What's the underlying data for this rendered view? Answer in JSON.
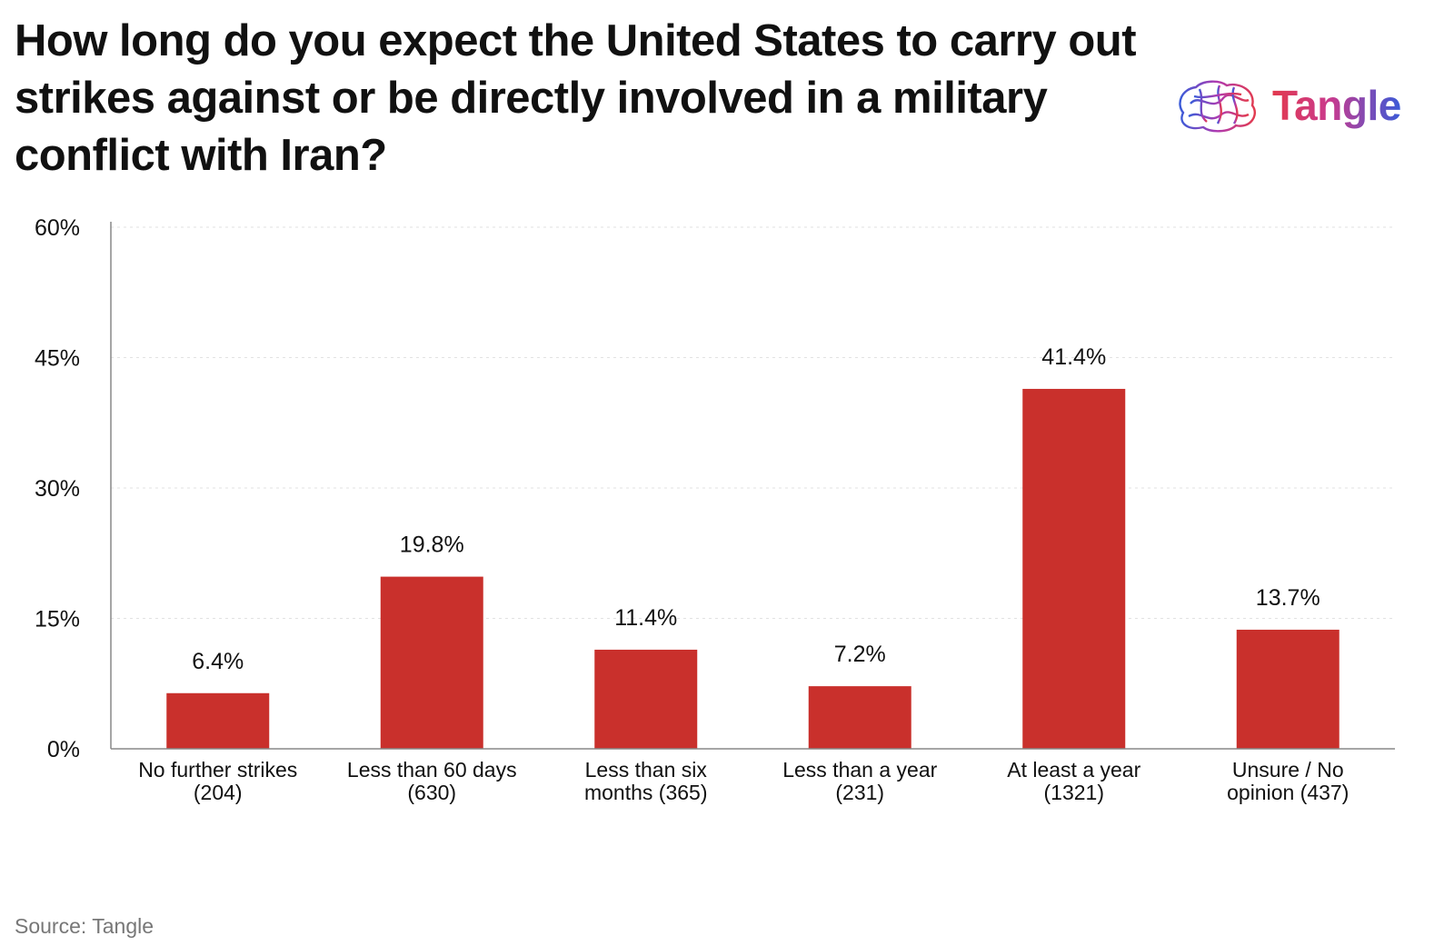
{
  "title": "How long do you expect the United States to carry out strikes against or be directly involved in a military conflict with Iran?",
  "logo": {
    "text": "Tangle",
    "icon": "tangle-brain-icon"
  },
  "source": "Source: Tangle",
  "colors": {
    "bar": "#c9302c",
    "axis": "#888888",
    "grid": "#e2e2e2",
    "text": "#111111"
  },
  "chart_data": {
    "type": "bar",
    "title": "How long do you expect the United States to carry out strikes against or be directly involved in a military conflict with Iran?",
    "categories": [
      [
        "No further strikes",
        "(204)"
      ],
      [
        "Less than 60 days",
        "(630)"
      ],
      [
        "Less than six",
        "months (365)"
      ],
      [
        "Less than a year",
        "(231)"
      ],
      [
        "At least a year",
        "(1321)"
      ],
      [
        "Unsure / No",
        "opinion (437)"
      ]
    ],
    "values": [
      6.4,
      19.8,
      11.4,
      7.2,
      41.4,
      13.7
    ],
    "value_labels": [
      "6.4%",
      "19.8%",
      "11.4%",
      "7.2%",
      "41.4%",
      "13.7%"
    ],
    "ylim": [
      0,
      60
    ],
    "yticks": [
      0,
      15,
      30,
      45,
      60
    ],
    "ytick_labels": [
      "0%",
      "15%",
      "30%",
      "45%",
      "60%"
    ],
    "grid": true,
    "legend": "none"
  }
}
